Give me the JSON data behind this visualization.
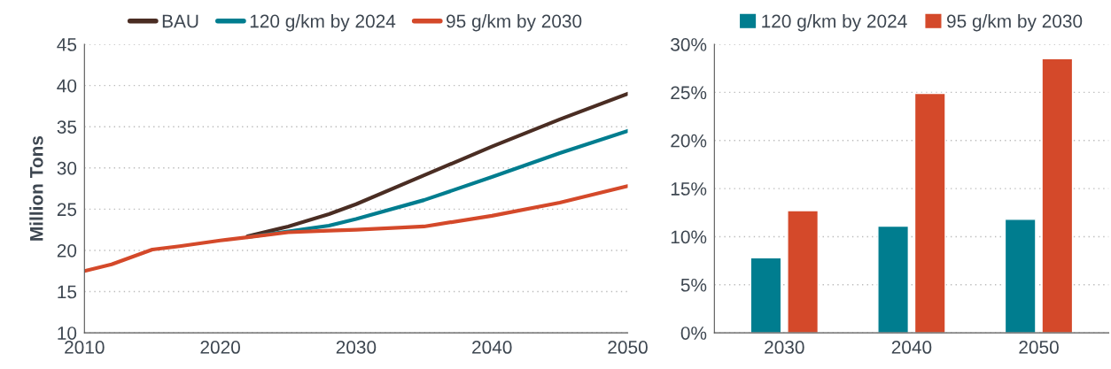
{
  "chart_data": [
    {
      "type": "line",
      "ylabel": "Million Tons",
      "x": [
        2010,
        2012,
        2015,
        2017,
        2020,
        2022,
        2025,
        2028,
        2030,
        2035,
        2040,
        2045,
        2050
      ],
      "series": [
        {
          "name": "BAU",
          "color": "#4a2d23",
          "values": [
            null,
            null,
            null,
            null,
            null,
            21.7,
            22.9,
            24.4,
            25.6,
            29.1,
            32.6,
            35.9,
            39.0
          ]
        },
        {
          "name": "120 g/km by 2024",
          "color": "#007d8f",
          "values": [
            null,
            null,
            null,
            null,
            null,
            21.6,
            22.3,
            23.0,
            23.8,
            26.1,
            28.9,
            31.8,
            34.5
          ]
        },
        {
          "name": "95 g/km by 2030",
          "color": "#d4492a",
          "values": [
            17.5,
            18.3,
            20.1,
            20.5,
            21.2,
            21.6,
            22.2,
            22.4,
            22.5,
            22.9,
            24.2,
            25.8,
            27.8
          ]
        }
      ],
      "xlim": [
        2010,
        2050
      ],
      "xticks": [
        2010,
        2020,
        2030,
        2040,
        2050
      ],
      "ylim": [
        10,
        45
      ],
      "yticks": [
        10,
        15,
        20,
        25,
        30,
        35,
        40,
        45
      ],
      "grid": "y",
      "legend": "top",
      "line_style": "solid",
      "marker": "none"
    },
    {
      "type": "bar",
      "categories": [
        "2030",
        "2040",
        "2050"
      ],
      "series": [
        {
          "name": "120 g/km by 2024",
          "color": "#007d8f",
          "values": [
            7.8,
            11.1,
            11.8
          ]
        },
        {
          "name": "95 g/km by 2030",
          "color": "#d4492a",
          "values": [
            12.7,
            24.9,
            28.5
          ]
        }
      ],
      "ylim": [
        0,
        30
      ],
      "yticks": [
        {
          "value": 0,
          "label": "0%"
        },
        {
          "value": 5,
          "label": "5%"
        },
        {
          "value": 10,
          "label": "10%"
        },
        {
          "value": 15,
          "label": "15%"
        },
        {
          "value": 20,
          "label": "20%"
        },
        {
          "value": 25,
          "label": "25%"
        },
        {
          "value": 30,
          "label": "30%"
        }
      ],
      "grid": "y",
      "legend": "top"
    }
  ]
}
